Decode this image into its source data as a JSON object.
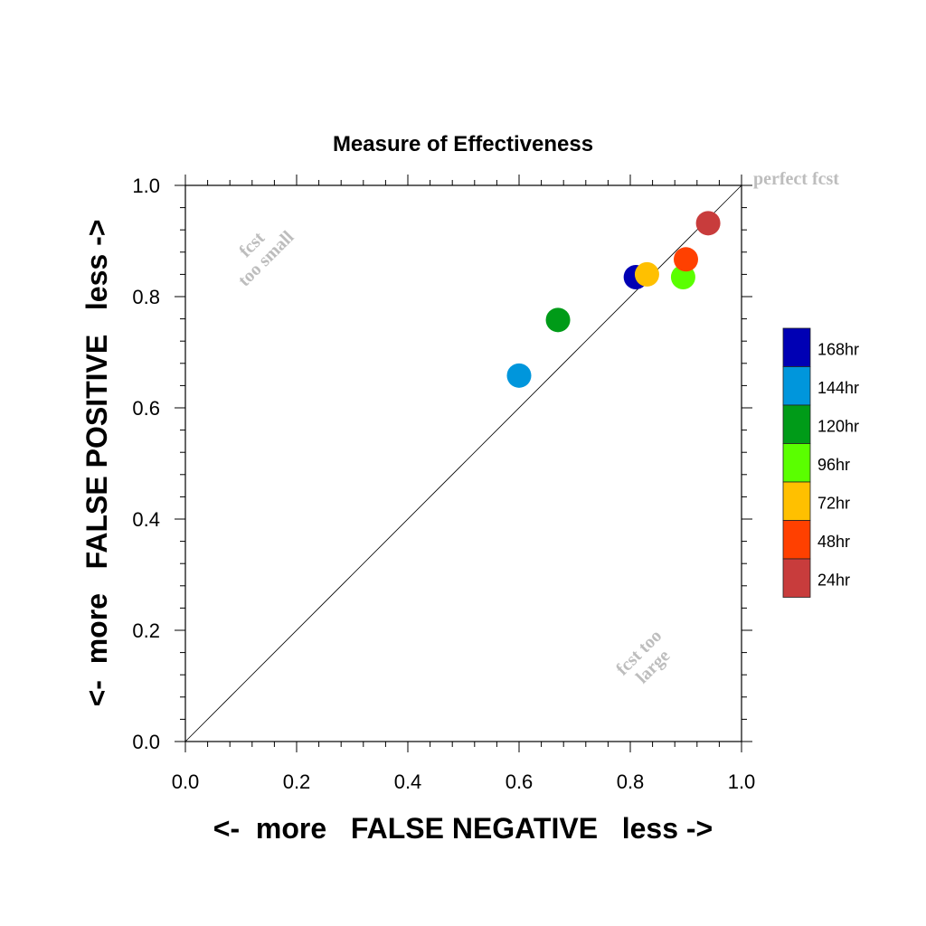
{
  "chart_data": {
    "type": "scatter",
    "title": "Measure of Effectiveness",
    "xlabel": "<-  more   FALSE NEGATIVE   less ->",
    "ylabel": "<-  more   FALSE POSITIVE   less ->",
    "xlim": [
      0,
      1
    ],
    "ylim": [
      0,
      1
    ],
    "xticks": [
      "0.0",
      "0.2",
      "0.4",
      "0.6",
      "0.8",
      "1.0"
    ],
    "yticks": [
      "0.0",
      "0.2",
      "0.4",
      "0.6",
      "0.8",
      "1.0"
    ],
    "grid": false,
    "diagonal_reference_line": true,
    "legend_position": "right",
    "annotations": {
      "perfect": "perfect fcst",
      "small_line1": "fcst",
      "small_line2": "too small",
      "large_line1": "fcst too",
      "large_line2": "large"
    },
    "series": [
      {
        "name": "168hr",
        "color": "#0000b4",
        "x": 0.81,
        "y": 0.835
      },
      {
        "name": "144hr",
        "color": "#0096dc",
        "x": 0.6,
        "y": 0.658
      },
      {
        "name": "120hr",
        "color": "#009b18",
        "x": 0.67,
        "y": 0.758
      },
      {
        "name": "96hr",
        "color": "#5aff00",
        "x": 0.895,
        "y": 0.835
      },
      {
        "name": "72hr",
        "color": "#ffc000",
        "x": 0.83,
        "y": 0.84
      },
      {
        "name": "48hr",
        "color": "#ff4000",
        "x": 0.9,
        "y": 0.867
      },
      {
        "name": "24hr",
        "color": "#c83c3c",
        "x": 0.94,
        "y": 0.932
      }
    ]
  }
}
